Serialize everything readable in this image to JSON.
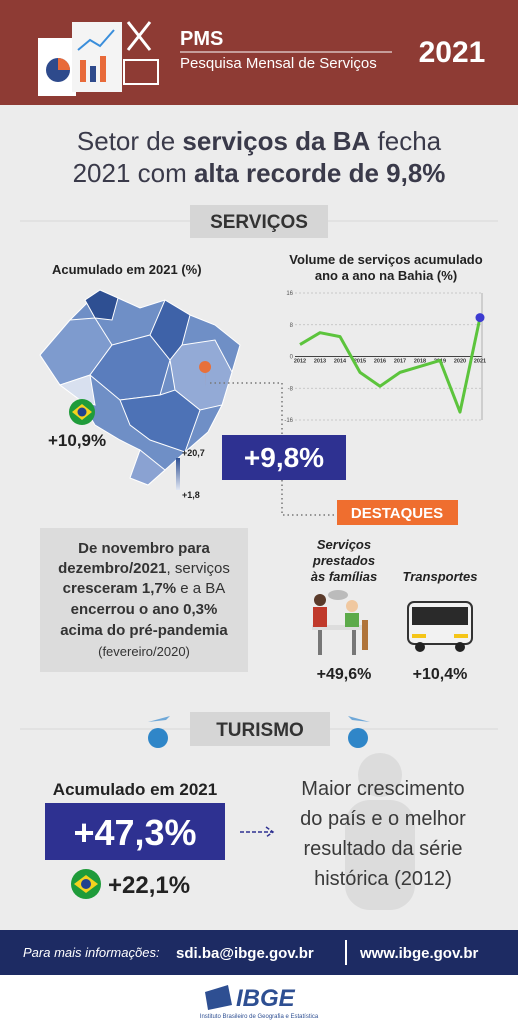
{
  "header": {
    "acronym": "PMS",
    "subtitle": "Pesquisa Mensal de Serviços",
    "year": "2021"
  },
  "headline": {
    "line1": [
      "Setor de ",
      "serviços da BA",
      " fecha"
    ],
    "line2": [
      "2021 com ",
      "alta recorde de 9,8%"
    ]
  },
  "services": {
    "section": "SERVIÇOS",
    "map_title": "Acumulado em 2021 (%)",
    "brazil": "+10,9%",
    "legend_max": "+20,7",
    "legend_min": "+1,8",
    "bahia": "+9,8%",
    "note": [
      [
        "De novembro para"
      ],
      [
        "dezembro/2021",
        ", serviços"
      ],
      [
        "cresceram 1,7%",
        " e a BA"
      ],
      [
        "encerrou o ano 0,3%"
      ],
      [
        "acima do pré-pandemia"
      ],
      [
        "(fevereiro/2020)"
      ]
    ]
  },
  "chart_data": {
    "type": "line",
    "title": [
      "Volume de serviços acumulado",
      "ano a ano na Bahia (%)"
    ],
    "categories": [
      "2012",
      "2013",
      "2014",
      "2015",
      "2016",
      "2017",
      "2018",
      "2019",
      "2020",
      "2021"
    ],
    "values": [
      3,
      6,
      5,
      -4,
      -7.5,
      -4,
      -2.5,
      -1,
      -14,
      9.8
    ],
    "color": "#5cc43c",
    "ylim": [
      -16,
      16
    ],
    "yticks": [
      -16,
      -8,
      0,
      8,
      16
    ],
    "grid": true
  },
  "highlights": {
    "title": "DESTAQUES",
    "families": [
      "Serviços",
      "prestados",
      "às famílias"
    ],
    "families_value": "+49,6%",
    "transport": "Transportes",
    "transport_value": "+10,4%"
  },
  "tourism": {
    "section": "TURISMO",
    "label": "Acumulado em 2021",
    "bahia": "+47,3%",
    "brazil": "+22,1%",
    "note": [
      "Maior crescimento",
      "do país e o melhor",
      "resultado da série",
      "histórica (2012)"
    ]
  },
  "footer": {
    "info": "Para mais informações:",
    "email": "sdi.ba@ibge.gov.br",
    "site": "www.ibge.gov.br",
    "logo": "IBGE",
    "institute": "Instituto Brasileiro de Geografia e Estatística"
  }
}
